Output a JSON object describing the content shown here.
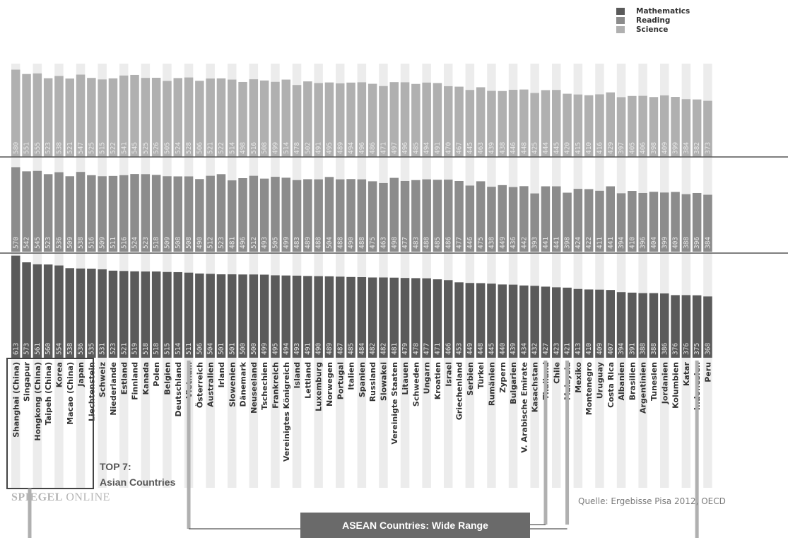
{
  "legend": [
    {
      "label": "Mathematics",
      "color": "#5a5a5a"
    },
    {
      "label": "Reading",
      "color": "#8c8c8c"
    },
    {
      "label": "Science",
      "color": "#b0b0b0"
    }
  ],
  "annotations": {
    "top7_line1": "TOP 7:",
    "top7_line2": "Asian Countries",
    "brand_bold": "SPIEGEL",
    "brand_rest": " ONLINE",
    "source": "Quelle: Ergebisse Pisa 2012, OECD",
    "asean": "ASEAN Countries: Wide Range"
  },
  "chart_data": {
    "type": "bar",
    "layout": "stacked-panels",
    "categories": [
      "Shanghai (China)",
      "Singapur",
      "Hongkong (China)",
      "Taipeh (China)",
      "Korea",
      "Macao (China)",
      "Japan",
      "Liechtenstein",
      "Schweiz",
      "Niederlande",
      "Estland",
      "Finnland",
      "Kanada",
      "Polen",
      "Belgien",
      "Deutschland",
      "Vietnam",
      "Österreich",
      "Australien",
      "Irland",
      "Slowenien",
      "Dänemark",
      "Neuseeland",
      "Tschechien",
      "Frankreich",
      "Vereinigtes Königreich",
      "Island",
      "Lettland",
      "Luxemburg",
      "Norwegen",
      "Portugal",
      "Italien",
      "Spanien",
      "Russland",
      "Slowakei",
      "Vereinigte Staaten",
      "Litauen",
      "Schweden",
      "Ungarn",
      "Kroatien",
      "Israel",
      "Griechenland",
      "Serbien",
      "Türkei",
      "Rumänien",
      "Zypern",
      "Bulgarien",
      "V. Arabische Emirate",
      "Kasachstan",
      "Thailand",
      "Chile",
      "Malaysia",
      "Mexiko",
      "Montenegro",
      "Uruguay",
      "Costa Rica",
      "Albanien",
      "Brasilien",
      "Argentinien",
      "Tunesien",
      "Jordanien",
      "Kolumbien",
      "Katar",
      "Indonesien",
      "Peru"
    ],
    "series": [
      {
        "name": "Mathematics",
        "values": [
          613,
          573,
          561,
          560,
          554,
          538,
          536,
          535,
          531,
          523,
          521,
          519,
          518,
          518,
          515,
          514,
          511,
          506,
          504,
          501,
          501,
          500,
          500,
          499,
          495,
          494,
          493,
          491,
          490,
          489,
          487,
          485,
          484,
          482,
          482,
          481,
          479,
          478,
          477,
          471,
          466,
          453,
          449,
          448,
          445,
          440,
          439,
          434,
          432,
          427,
          423,
          421,
          413,
          410,
          409,
          407,
          394,
          391,
          388,
          388,
          386,
          376,
          376,
          375,
          368
        ]
      },
      {
        "name": "Reading",
        "values": [
          570,
          542,
          545,
          523,
          536,
          509,
          538,
          516,
          509,
          511,
          516,
          524,
          523,
          518,
          509,
          508,
          508,
          490,
          512,
          523,
          481,
          496,
          512,
          493,
          505,
          499,
          483,
          489,
          488,
          504,
          488,
          490,
          488,
          475,
          463,
          498,
          477,
          483,
          488,
          485,
          486,
          477,
          446,
          475,
          438,
          449,
          436,
          442,
          393,
          441,
          441,
          398,
          424,
          422,
          411,
          441,
          394,
          410,
          396,
          404,
          399,
          403,
          388,
          396,
          384
        ]
      },
      {
        "name": "Science",
        "values": [
          580,
          551,
          555,
          523,
          538,
          521,
          547,
          525,
          515,
          522,
          541,
          545,
          525,
          526,
          505,
          524,
          528,
          506,
          521,
          522,
          514,
          498,
          516,
          508,
          499,
          514,
          478,
          502,
          491,
          495,
          489,
          494,
          496,
          486,
          471,
          497,
          496,
          485,
          494,
          491,
          470,
          467,
          445,
          463,
          439,
          438,
          446,
          448,
          425,
          444,
          445,
          420,
          415,
          410,
          416,
          429,
          397,
          405,
          406,
          398,
          409,
          399,
          384,
          382,
          373
        ]
      }
    ],
    "ylim": [
      0,
      620
    ]
  }
}
